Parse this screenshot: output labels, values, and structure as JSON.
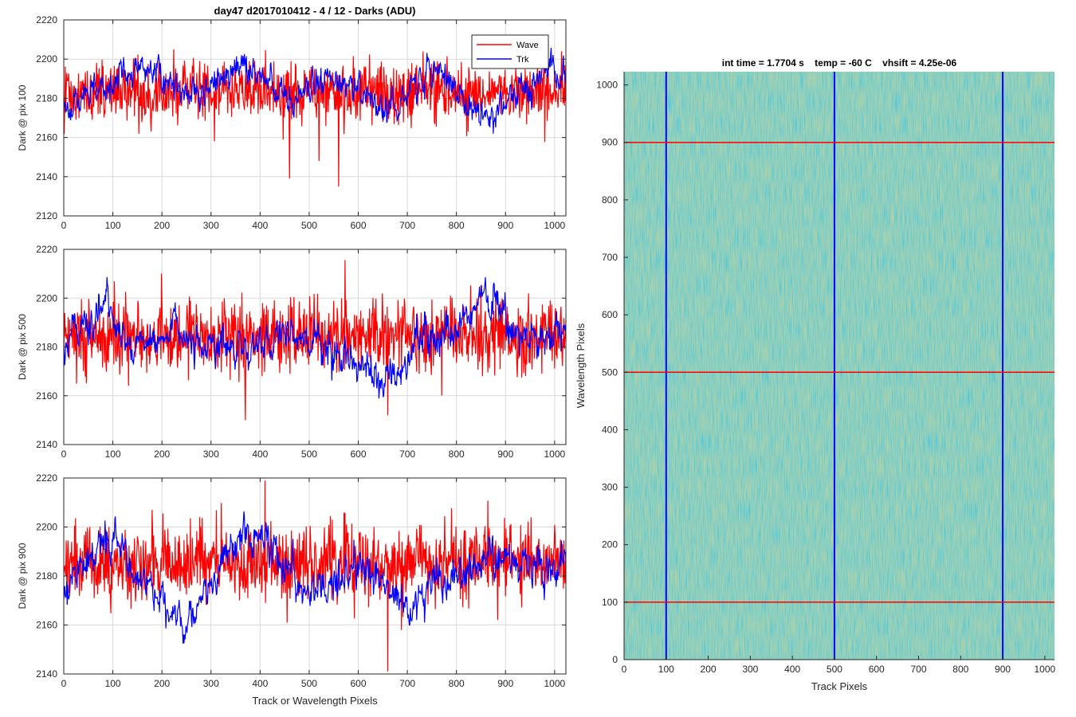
{
  "figure": {
    "left_title": "day47 d2017010412 - 4 / 12 - Darks (ADU)",
    "right_title": "int time = 1.7704 s    temp = -60 C    vhsift = 4.25e-06"
  },
  "colors": {
    "wave": "#ff0000",
    "trk": "#0000ff",
    "map_low": "#1fa0b4",
    "map_mid": "#38ad8c",
    "map_high": "#c7cc4a",
    "grid": "#d9d9d9"
  },
  "chart_data": [
    {
      "type": "line",
      "ylabel": "Dark @ pix 100",
      "xlabel": "",
      "xlim": [
        0,
        1023
      ],
      "ylim": [
        2120,
        2220
      ],
      "xticks": [
        0,
        100,
        200,
        300,
        400,
        500,
        600,
        700,
        800,
        900,
        1000
      ],
      "yticks": [
        2120,
        2140,
        2160,
        2180,
        2200,
        2220
      ],
      "legend": {
        "position": "top-right",
        "entries": [
          "Wave",
          "Trk"
        ]
      },
      "series": [
        {
          "name": "Wave",
          "color": "#ff0000",
          "mean": 2183,
          "noise": 8,
          "drift": [
            [
              0,
              2183
            ],
            [
              1023,
              2183
            ]
          ],
          "min_marks": [
            [
              460,
              2139
            ],
            [
              560,
              2135
            ],
            [
              520,
              2148
            ]
          ]
        },
        {
          "name": "Trk",
          "color": "#0000ff",
          "mean": 2185,
          "noise": 4,
          "drift": [
            [
              0,
              2172
            ],
            [
              60,
              2185
            ],
            [
              130,
              2192
            ],
            [
              180,
              2197
            ],
            [
              240,
              2182
            ],
            [
              300,
              2185
            ],
            [
              360,
              2196
            ],
            [
              420,
              2186
            ],
            [
              470,
              2178
            ],
            [
              520,
              2190
            ],
            [
              600,
              2185
            ],
            [
              680,
              2172
            ],
            [
              720,
              2190
            ],
            [
              760,
              2197
            ],
            [
              800,
              2182
            ],
            [
              840,
              2172
            ],
            [
              880,
              2172
            ],
            [
              930,
              2185
            ],
            [
              980,
              2195
            ],
            [
              1023,
              2190
            ]
          ]
        }
      ]
    },
    {
      "type": "line",
      "ylabel": "Dark @ pix 500",
      "xlabel": "",
      "xlim": [
        0,
        1023
      ],
      "ylim": [
        2140,
        2220
      ],
      "xticks": [
        0,
        100,
        200,
        300,
        400,
        500,
        600,
        700,
        800,
        900,
        1000
      ],
      "yticks": [
        2140,
        2160,
        2180,
        2200,
        2220
      ],
      "series": [
        {
          "name": "Wave",
          "color": "#ff0000",
          "mean": 2184,
          "noise": 8,
          "drift": [
            [
              0,
              2184
            ],
            [
              1023,
              2184
            ]
          ],
          "min_marks": [
            [
              370,
              2150
            ],
            [
              660,
              2152
            ]
          ]
        },
        {
          "name": "Trk",
          "color": "#0000ff",
          "mean": 2182,
          "noise": 4,
          "drift": [
            [
              0,
              2182
            ],
            [
              60,
              2190
            ],
            [
              80,
              2200
            ],
            [
              130,
              2180
            ],
            [
              200,
              2185
            ],
            [
              300,
              2180
            ],
            [
              400,
              2180
            ],
            [
              450,
              2186
            ],
            [
              520,
              2182
            ],
            [
              620,
              2170
            ],
            [
              680,
              2166
            ],
            [
              720,
              2182
            ],
            [
              800,
              2185
            ],
            [
              850,
              2200
            ],
            [
              900,
              2192
            ],
            [
              950,
              2182
            ],
            [
              1023,
              2186
            ]
          ]
        }
      ]
    },
    {
      "type": "line",
      "ylabel": "Dark @ pix 900",
      "xlabel": "Track or Wavelength Pixels",
      "xlim": [
        0,
        1023
      ],
      "ylim": [
        2140,
        2220
      ],
      "xticks": [
        0,
        100,
        200,
        300,
        400,
        500,
        600,
        700,
        800,
        900,
        1000
      ],
      "yticks": [
        2140,
        2160,
        2180,
        2200,
        2220
      ],
      "series": [
        {
          "name": "Wave",
          "color": "#ff0000",
          "mean": 2185,
          "noise": 8,
          "drift": [
            [
              0,
              2185
            ],
            [
              1023,
              2185
            ]
          ],
          "max_marks": [
            [
              410,
              2219
            ],
            [
              660,
              2141
            ]
          ]
        },
        {
          "name": "Trk",
          "color": "#0000ff",
          "mean": 2182,
          "noise": 4,
          "drift": [
            [
              0,
              2175
            ],
            [
              50,
              2185
            ],
            [
              100,
              2198
            ],
            [
              150,
              2180
            ],
            [
              200,
              2170
            ],
            [
              250,
              2160
            ],
            [
              300,
              2180
            ],
            [
              350,
              2190
            ],
            [
              400,
              2200
            ],
            [
              450,
              2185
            ],
            [
              500,
              2172
            ],
            [
              560,
              2180
            ],
            [
              620,
              2182
            ],
            [
              700,
              2168
            ],
            [
              760,
              2178
            ],
            [
              820,
              2178
            ],
            [
              880,
              2188
            ],
            [
              940,
              2186
            ],
            [
              1000,
              2180
            ],
            [
              1023,
              2190
            ]
          ]
        }
      ]
    },
    {
      "type": "heatmap",
      "title": "int time = 1.7704 s    temp = -60 C    vhsift = 4.25e-06",
      "xlabel": "Track Pixels",
      "ylabel": "Wavelength Pixels",
      "xlim": [
        0,
        1023
      ],
      "ylim": [
        0,
        1023
      ],
      "xticks": [
        0,
        100,
        200,
        300,
        400,
        500,
        600,
        700,
        800,
        900,
        1000
      ],
      "yticks": [
        0,
        100,
        200,
        300,
        400,
        500,
        600,
        700,
        800,
        900,
        1000
      ],
      "overlay_lines": {
        "vertical_blue_at_x": [
          100,
          500,
          900
        ],
        "horizontal_red_at_y": [
          100,
          500,
          900
        ]
      }
    }
  ]
}
